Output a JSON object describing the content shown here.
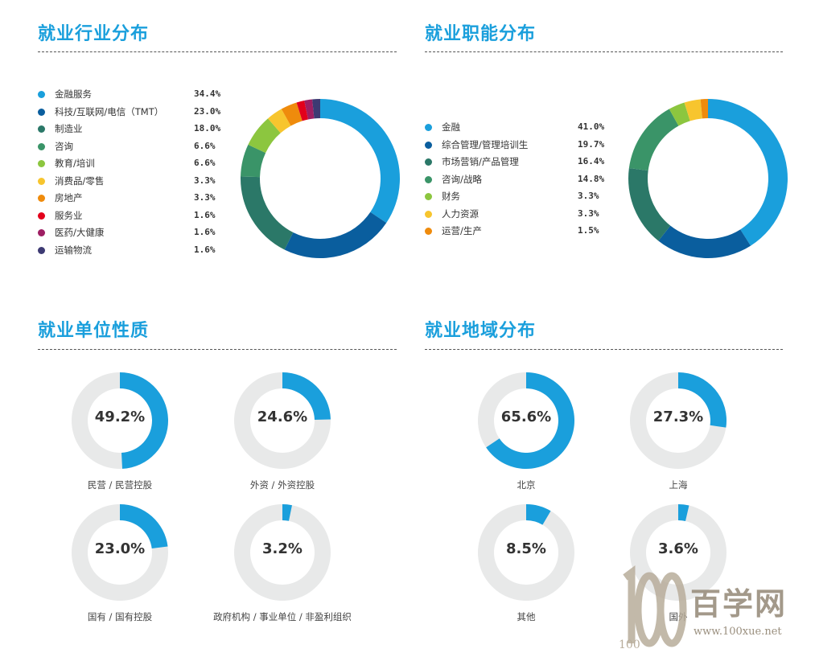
{
  "sections": {
    "industry": "就业行业分布",
    "function": "就业职能分布",
    "unit": "就业单位性质",
    "region": "就业地域分布"
  },
  "chart_data": [
    {
      "type": "pie",
      "title": "就业行业分布",
      "donut": true,
      "legend": "left",
      "slices": [
        {
          "label": "金融服务",
          "value": 34.4,
          "display": "34.4%",
          "color": "#1a9fdc"
        },
        {
          "label": "科技/互联网/电信（TMT）",
          "value": 23.0,
          "display": "23.0%",
          "color": "#0a5e9e"
        },
        {
          "label": "制造业",
          "value": 18.0,
          "display": "18.0%",
          "color": "#2b7868"
        },
        {
          "label": "咨询",
          "value": 6.6,
          "display": "6.6%",
          "color": "#3a9468"
        },
        {
          "label": "教育/培训",
          "value": 6.6,
          "display": "6.6%",
          "color": "#8cc63f"
        },
        {
          "label": "消费品/零售",
          "value": 3.3,
          "display": "3.3%",
          "color": "#f7c52e"
        },
        {
          "label": "房地产",
          "value": 3.3,
          "display": "3.3%",
          "color": "#ef8b0c"
        },
        {
          "label": "服务业",
          "value": 1.6,
          "display": "1.6%",
          "color": "#e3001b"
        },
        {
          "label": "医药/大健康",
          "value": 1.6,
          "display": "1.6%",
          "color": "#9e1f63"
        },
        {
          "label": "运输物流",
          "value": 1.6,
          "display": "1.6%",
          "color": "#3d3a73"
        }
      ]
    },
    {
      "type": "pie",
      "title": "就业职能分布",
      "donut": true,
      "legend": "left",
      "slices": [
        {
          "label": "金融",
          "value": 41.0,
          "display": "41.0%",
          "color": "#1a9fdc"
        },
        {
          "label": "综合管理/管理培训生",
          "value": 19.7,
          "display": "19.7%",
          "color": "#0a5e9e"
        },
        {
          "label": "市场营销/产品管理",
          "value": 16.4,
          "display": "16.4%",
          "color": "#2b7868"
        },
        {
          "label": "咨询/战略",
          "value": 14.8,
          "display": "14.8%",
          "color": "#3a9468"
        },
        {
          "label": "财务",
          "value": 3.3,
          "display": "3.3%",
          "color": "#8cc63f"
        },
        {
          "label": "人力资源",
          "value": 3.3,
          "display": "3.3%",
          "color": "#f7c52e"
        },
        {
          "label": "运营/生产",
          "value": 1.5,
          "display": "1.5%",
          "color": "#ef8b0c"
        }
      ]
    },
    {
      "type": "pie",
      "title": "就业单位性质",
      "donut": true,
      "gauges": [
        {
          "label": "民营 / 民营控股",
          "value": 49.2,
          "display": "49.2%"
        },
        {
          "label": "外资 / 外资控股",
          "value": 24.6,
          "display": "24.6%"
        },
        {
          "label": "国有 / 国有控股",
          "value": 23.0,
          "display": "23.0%"
        },
        {
          "label": "政府机构 / 事业单位 / 非盈利组织",
          "value": 3.2,
          "display": "3.2%"
        }
      ]
    },
    {
      "type": "pie",
      "title": "就业地域分布",
      "donut": true,
      "gauges": [
        {
          "label": "北京",
          "value": 65.6,
          "display": "65.6%"
        },
        {
          "label": "上海",
          "value": 27.3,
          "display": "27.3%"
        },
        {
          "label": "其他",
          "value": 8.5,
          "display": "8.5%"
        },
        {
          "label": "国外",
          "value": 3.6,
          "display": "3.6%"
        }
      ]
    }
  ],
  "colors": {
    "accent": "#1a9fdc",
    "track": "#e8e9e9"
  },
  "watermark": {
    "logo_text": "100",
    "word": "百学网",
    "url": "www.100xue.net"
  }
}
